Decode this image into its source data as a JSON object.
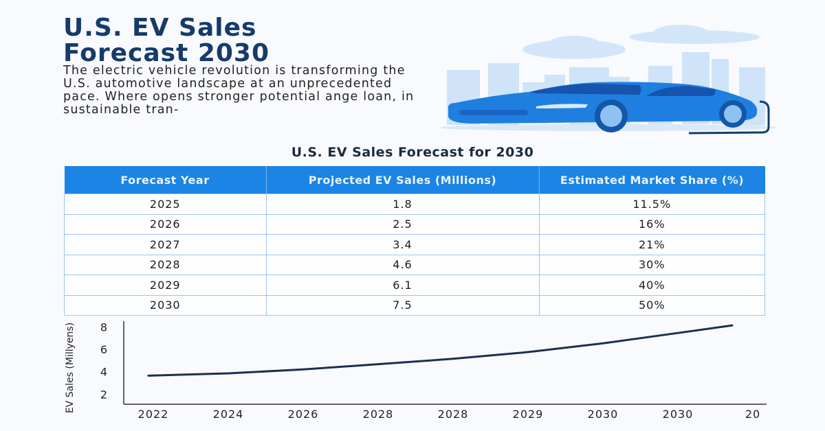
{
  "header": {
    "title_line1": "U.S. EV Sales",
    "title_line2": "Forecast 2030",
    "intro": "The electric vehicle revolution is transforming the U.S. automotive landscape at an unprecedented pace. Where opens stronger potential ange loan, in sustainable tran-"
  },
  "illustration": {
    "icon": "electric-car-city-icon",
    "colors": {
      "car": "#1f7fe0",
      "car_dark": "#1557b0",
      "buildings": "#cfe4f8"
    }
  },
  "table": {
    "title": "U.S. EV Sales Forecast for 2030",
    "columns": [
      "Forecast Year",
      "Projected EV Sales (Millions)",
      "Estimated Market Share (%)"
    ],
    "rows": [
      [
        "2025",
        "1.8",
        "11.5%"
      ],
      [
        "2026",
        "2.5",
        "16%"
      ],
      [
        "2027",
        "3.4",
        "21%"
      ],
      [
        "2028",
        "4.6",
        "30%"
      ],
      [
        "2029",
        "6.1",
        "40%"
      ],
      [
        "2030",
        "7.5",
        "50%"
      ]
    ],
    "header_color": "#1c84e4"
  },
  "chart_data": {
    "type": "line",
    "ylabel": "EV Sales (Millyens)",
    "xlabel": "",
    "categories": [
      "2022",
      "2024",
      "2026",
      "2028",
      "2028",
      "2029",
      "2030",
      "2030",
      "20"
    ],
    "yticks": [
      2,
      4,
      6,
      8
    ],
    "ylim": [
      1.1,
      8.5
    ],
    "grid": false,
    "series": [
      {
        "values": [
          3.65,
          3.86,
          4.21,
          4.68,
          5.16,
          5.76,
          6.54,
          7.47,
          8.15
        ],
        "color": "#1c2e52"
      }
    ]
  }
}
